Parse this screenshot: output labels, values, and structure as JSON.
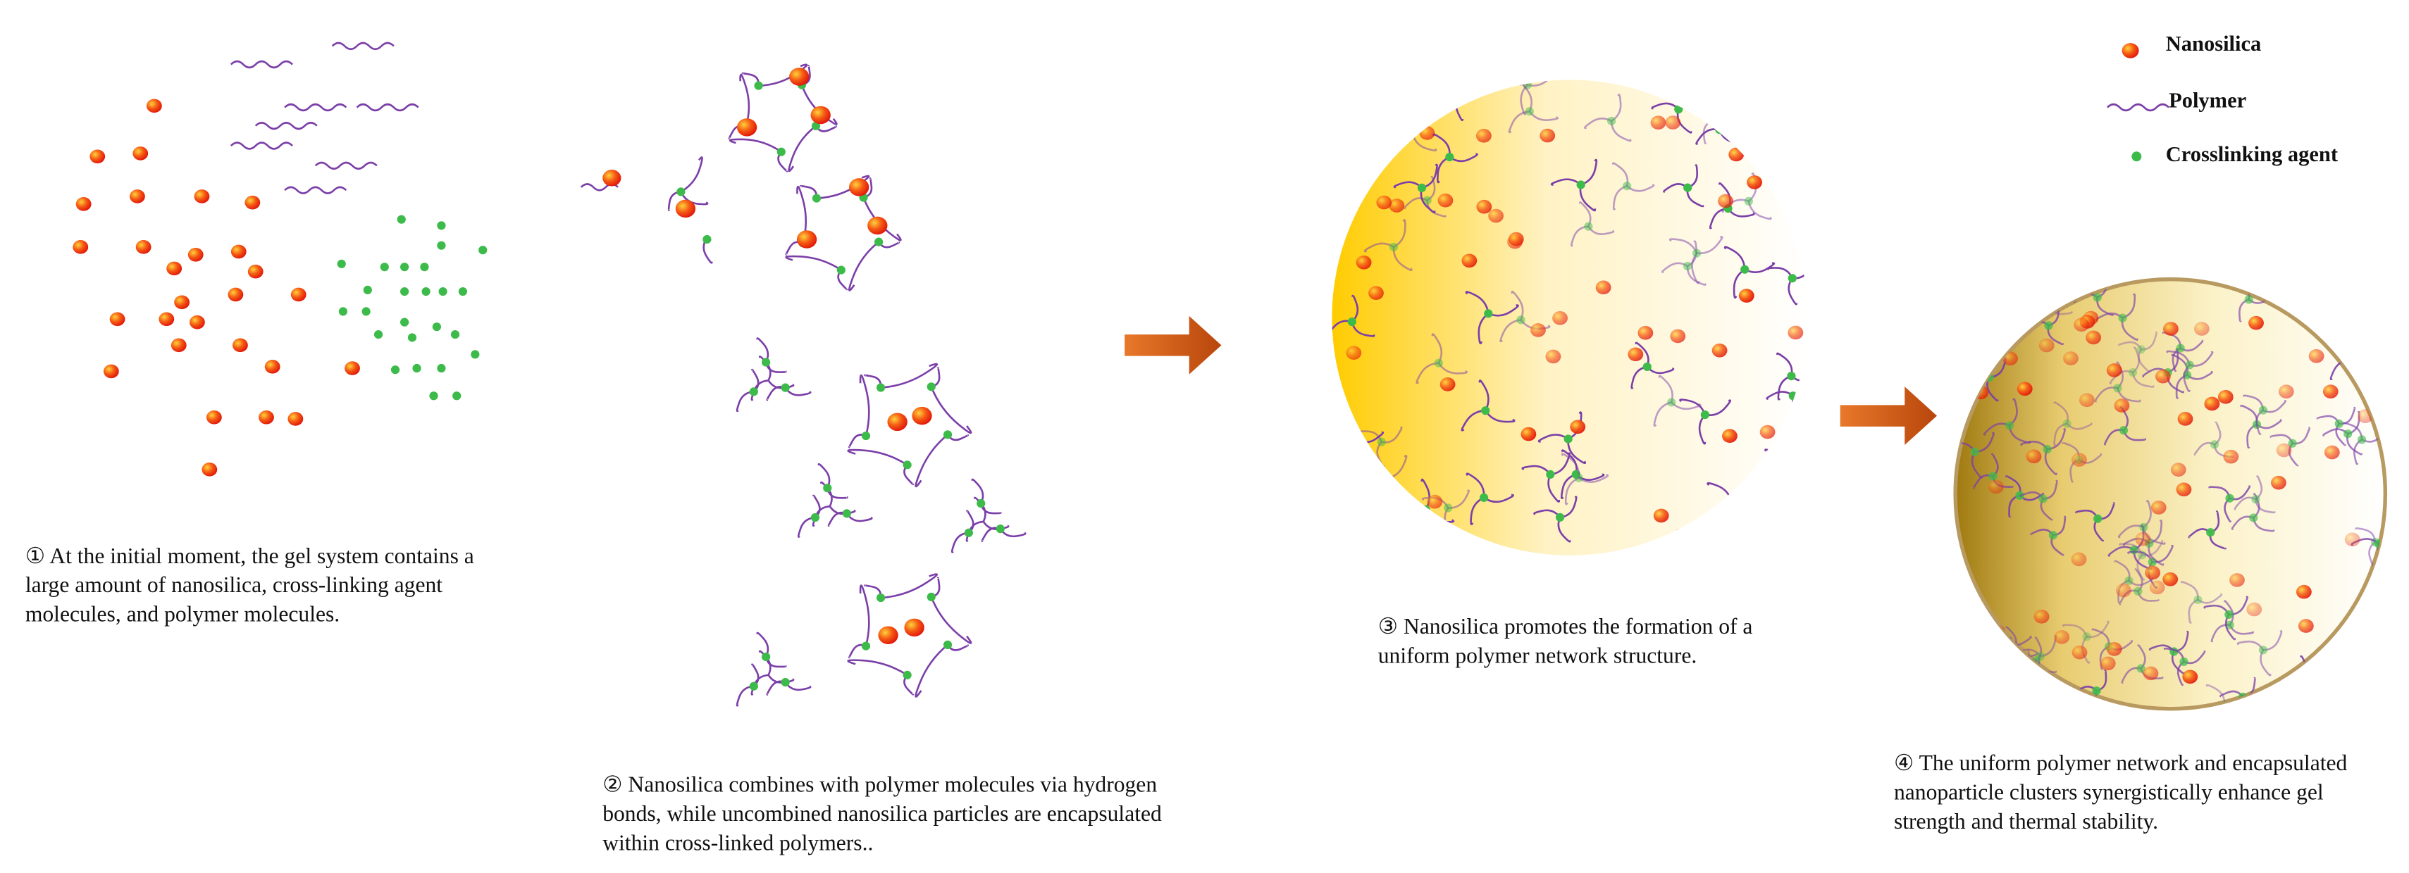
{
  "legend": {
    "items": [
      {
        "label": "Nanosilica"
      },
      {
        "label": "Polymer"
      },
      {
        "label": "Crosslinking agent"
      }
    ]
  },
  "panels": [
    {
      "caption_lines": [
        "① At the initial moment, the gel system contains a",
        "large amount of nanosilica, cross-linking agent",
        "molecules, and polymer molecules."
      ]
    },
    {
      "caption_lines": [
        "② Nanosilica combines with polymer molecules via hydrogen",
        "bonds, while uncombined nanosilica particles are encapsulated",
        "within cross-linked polymers.."
      ]
    },
    {
      "caption_lines": [
        "③ Nanosilica promotes the formation of a",
        "uniform polymer network structure."
      ]
    },
    {
      "caption_lines": [
        "④ The uniform polymer network and encapsulated",
        "nanoparticle clusters synergistically enhance gel",
        "strength and thermal stability."
      ]
    }
  ]
}
